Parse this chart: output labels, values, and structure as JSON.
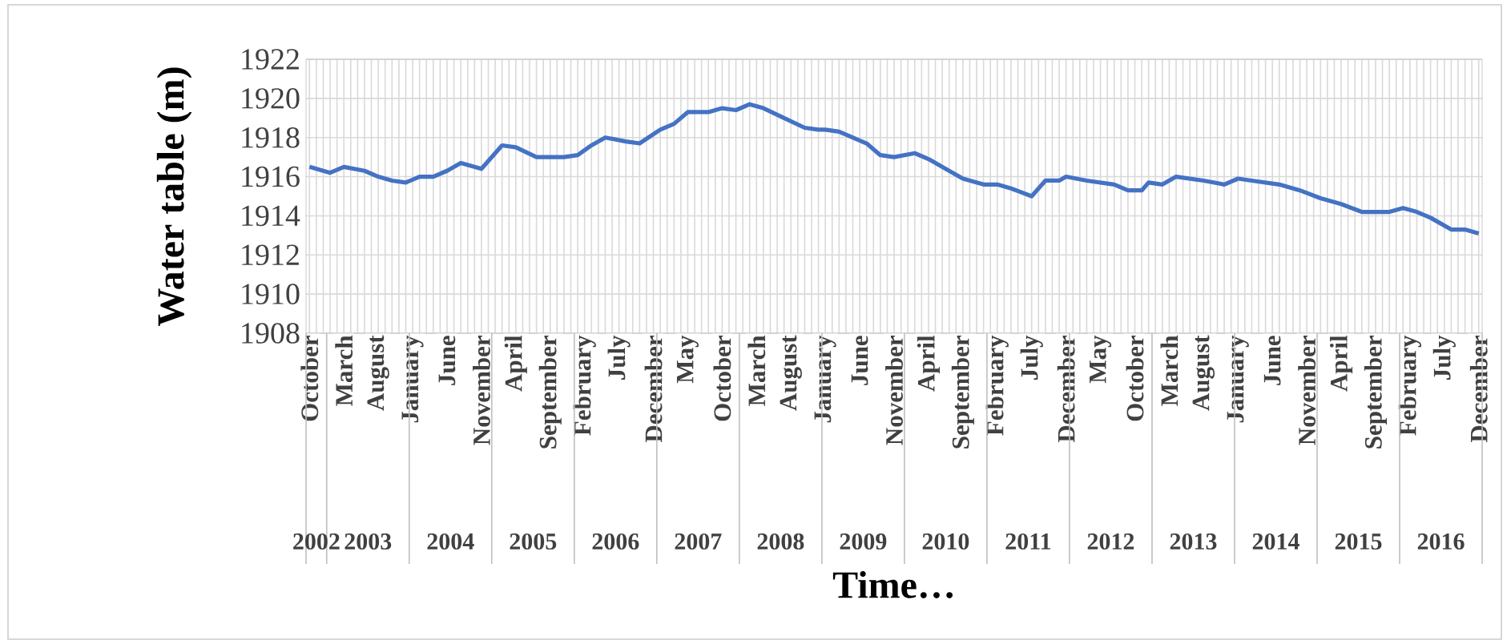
{
  "chart_data": {
    "type": "line",
    "xlabel": "Time…",
    "ylabel": "Water table (m)",
    "x": [
      "2002-10",
      "2003-01",
      "2003-03",
      "2003-06",
      "2003-08",
      "2003-10",
      "2003-12",
      "2004-02",
      "2004-04",
      "2004-06",
      "2004-08",
      "2004-11",
      "2005-02",
      "2005-04",
      "2005-07",
      "2005-10",
      "2005-11",
      "2006-01",
      "2006-03",
      "2006-05",
      "2006-08",
      "2006-10",
      "2007-01",
      "2007-03",
      "2007-05",
      "2007-08",
      "2007-10",
      "2007-12",
      "2008-02",
      "2008-04",
      "2008-07",
      "2008-10",
      "2008-12",
      "2009-01",
      "2009-03",
      "2009-07",
      "2009-09",
      "2009-11",
      "2010-02",
      "2010-04",
      "2010-07",
      "2010-09",
      "2010-12",
      "2011-02",
      "2011-04",
      "2011-07",
      "2011-09",
      "2011-11",
      "2011-12",
      "2012-03",
      "2012-07",
      "2012-09",
      "2012-11",
      "2012-12",
      "2013-02",
      "2013-04",
      "2013-08",
      "2013-11",
      "2014-01",
      "2014-03",
      "2014-07",
      "2014-10",
      "2015-01",
      "2015-04",
      "2015-07",
      "2015-11",
      "2016-01",
      "2016-03",
      "2016-05",
      "2016-08",
      "2016-10",
      "2016-12"
    ],
    "series": [
      {
        "color": "#4472c4",
        "values": [
          1916.5,
          1916.2,
          1916.5,
          1916.3,
          1916.0,
          1915.8,
          1915.7,
          1916.0,
          1916.0,
          1916.3,
          1916.7,
          1916.4,
          1917.6,
          1917.5,
          1917.0,
          1917.0,
          1917.0,
          1917.1,
          1917.6,
          1918.0,
          1917.8,
          1917.7,
          1918.4,
          1918.7,
          1919.3,
          1919.3,
          1919.5,
          1919.4,
          1919.7,
          1919.5,
          1919.0,
          1918.5,
          1918.4,
          1918.4,
          1918.3,
          1917.7,
          1917.1,
          1917.0,
          1917.2,
          1916.9,
          1916.3,
          1915.9,
          1915.6,
          1915.6,
          1915.4,
          1915.0,
          1915.8,
          1915.8,
          1916.0,
          1915.8,
          1915.6,
          1915.3,
          1915.3,
          1915.7,
          1915.6,
          1916.0,
          1915.8,
          1915.6,
          1915.9,
          1915.8,
          1915.6,
          1915.3,
          1914.9,
          1914.6,
          1914.2,
          1914.2,
          1914.4,
          1914.2,
          1913.9,
          1913.3,
          1913.3,
          1913.1
        ]
      }
    ],
    "xlim": [
      "2002-09-16",
      "2016-12-16"
    ],
    "xticks": [
      {
        "value": "2002-10",
        "label": "October"
      },
      {
        "value": "2003-03",
        "label": "March"
      },
      {
        "value": "2003-08",
        "label": "August"
      },
      {
        "value": "2004-01",
        "label": "January"
      },
      {
        "value": "2004-06",
        "label": "June"
      },
      {
        "value": "2004-11",
        "label": "November"
      },
      {
        "value": "2005-04",
        "label": "April"
      },
      {
        "value": "2005-09",
        "label": "September"
      },
      {
        "value": "2006-02",
        "label": "February"
      },
      {
        "value": "2006-07",
        "label": "July"
      },
      {
        "value": "2006-12",
        "label": "December"
      },
      {
        "value": "2007-05",
        "label": "May"
      },
      {
        "value": "2007-10",
        "label": "October"
      },
      {
        "value": "2008-03",
        "label": "March"
      },
      {
        "value": "2008-08",
        "label": "August"
      },
      {
        "value": "2009-01",
        "label": "January"
      },
      {
        "value": "2009-06",
        "label": "June"
      },
      {
        "value": "2009-11",
        "label": "November"
      },
      {
        "value": "2010-04",
        "label": "April"
      },
      {
        "value": "2010-09",
        "label": "September"
      },
      {
        "value": "2011-02",
        "label": "February"
      },
      {
        "value": "2011-07",
        "label": "July"
      },
      {
        "value": "2011-12",
        "label": "December"
      },
      {
        "value": "2012-05",
        "label": "May"
      },
      {
        "value": "2012-10",
        "label": "October"
      },
      {
        "value": "2013-03",
        "label": "March"
      },
      {
        "value": "2013-08",
        "label": "August"
      },
      {
        "value": "2014-01",
        "label": "January"
      },
      {
        "value": "2014-06",
        "label": "June"
      },
      {
        "value": "2014-11",
        "label": "November"
      },
      {
        "value": "2015-04",
        "label": "April"
      },
      {
        "value": "2015-09",
        "label": "September"
      },
      {
        "value": "2016-02",
        "label": "February"
      },
      {
        "value": "2016-07",
        "label": "July"
      },
      {
        "value": "2016-12",
        "label": "December"
      }
    ],
    "ylim": [
      1908,
      1922
    ],
    "yticks": [
      1908,
      1910,
      1912,
      1914,
      1916,
      1918,
      1920,
      1922
    ],
    "grid": true,
    "annotations": [
      "2002",
      "2003",
      "2004",
      "2005",
      "2006",
      "2007",
      "2008",
      "2009",
      "2010",
      "2011",
      "2012",
      "2013",
      "2014",
      "2015",
      "2016"
    ]
  }
}
